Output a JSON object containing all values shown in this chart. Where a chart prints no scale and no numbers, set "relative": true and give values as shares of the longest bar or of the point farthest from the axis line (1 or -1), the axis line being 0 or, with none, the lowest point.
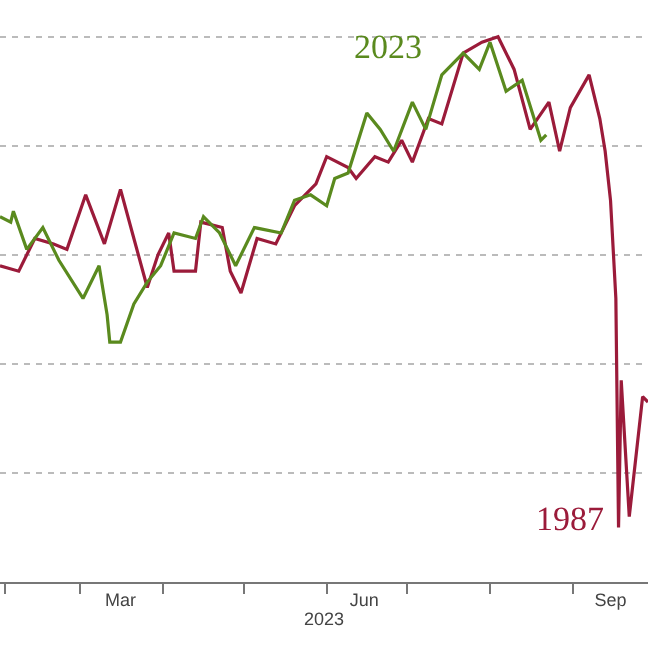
{
  "chart_data": {
    "type": "line",
    "relative": true,
    "xlabel": "2023",
    "legend": false,
    "grid": "y",
    "line_style": "solid",
    "marker": "none",
    "xlim": [
      "2023-01-30",
      "2023-09-29"
    ],
    "xticks": [
      {
        "value": "2023-02-01",
        "label": null
      },
      {
        "value": "2023-03-01",
        "label": null
      },
      {
        "value": "2023-03-16",
        "label": "Mar"
      },
      {
        "value": "2023-04-01",
        "label": null
      },
      {
        "value": "2023-05-01",
        "label": null
      },
      {
        "value": "2023-06-01",
        "label": null
      },
      {
        "value": "2023-06-15",
        "label": "Jun"
      },
      {
        "value": "2023-07-01",
        "label": null
      },
      {
        "value": "2023-08-01",
        "label": null
      },
      {
        "value": "2023-09-01",
        "label": null
      },
      {
        "value": "2023-09-15",
        "label": "Sep"
      }
    ],
    "series": [
      {
        "name": "1987",
        "color": "#9b1b3a",
        "x": [
          "2023-01-30",
          "2023-02-06",
          "2023-02-12",
          "2023-02-19",
          "2023-02-24",
          "2023-03-03",
          "2023-03-10",
          "2023-03-16",
          "2023-03-21",
          "2023-03-26",
          "2023-03-30",
          "2023-04-03",
          "2023-04-05",
          "2023-04-13",
          "2023-04-15",
          "2023-04-23",
          "2023-04-26",
          "2023-04-30",
          "2023-05-06",
          "2023-05-13",
          "2023-05-20",
          "2023-05-28",
          "2023-06-01",
          "2023-06-09",
          "2023-06-12",
          "2023-06-19",
          "2023-06-24",
          "2023-06-29",
          "2023-07-03",
          "2023-07-09",
          "2023-07-14",
          "2023-07-22",
          "2023-07-29",
          "2023-08-04",
          "2023-08-10",
          "2023-08-16",
          "2023-08-23",
          "2023-08-27",
          "2023-08-31",
          "2023-09-07",
          "2023-09-11",
          "2023-09-13",
          "2023-09-15",
          "2023-09-17",
          "2023-09-18",
          "2023-09-19",
          "2023-09-22",
          "2023-09-27",
          "2023-09-29"
        ],
        "values": [
          0.58,
          0.57,
          0.63,
          0.62,
          0.61,
          0.71,
          0.62,
          0.72,
          0.63,
          0.54,
          0.6,
          0.64,
          0.57,
          0.57,
          0.66,
          0.65,
          0.57,
          0.53,
          0.63,
          0.62,
          0.69,
          0.73,
          0.78,
          0.76,
          0.74,
          0.78,
          0.77,
          0.81,
          0.77,
          0.85,
          0.84,
          0.97,
          0.99,
          1,
          0.94,
          0.83,
          0.88,
          0.79,
          0.87,
          0.93,
          0.85,
          0.79,
          0.7,
          0.52,
          0.1,
          0.37,
          0.12,
          0.34,
          0.33
        ]
      },
      {
        "name": "2023",
        "color": "#5a8a1e",
        "x": [
          "2023-01-30",
          "2023-02-03",
          "2023-02-04",
          "2023-02-09",
          "2023-02-15",
          "2023-02-21",
          "2023-03-02",
          "2023-03-08",
          "2023-03-11",
          "2023-03-12",
          "2023-03-16",
          "2023-03-21",
          "2023-03-26",
          "2023-03-31",
          "2023-04-05",
          "2023-04-13",
          "2023-04-16",
          "2023-04-22",
          "2023-04-28",
          "2023-05-05",
          "2023-05-15",
          "2023-05-20",
          "2023-05-26",
          "2023-06-01",
          "2023-06-04",
          "2023-06-09",
          "2023-06-16",
          "2023-06-21",
          "2023-06-26",
          "2023-07-03",
          "2023-07-08",
          "2023-07-14",
          "2023-07-22",
          "2023-07-28",
          "2023-08-01",
          "2023-08-07",
          "2023-08-13",
          "2023-08-20",
          "2023-08-22"
        ],
        "values": [
          0.67,
          0.66,
          0.68,
          0.61,
          0.65,
          0.59,
          0.52,
          0.58,
          0.49,
          0.44,
          0.44,
          0.51,
          0.55,
          0.58,
          0.64,
          0.63,
          0.67,
          0.64,
          0.58,
          0.65,
          0.64,
          0.7,
          0.71,
          0.69,
          0.74,
          0.75,
          0.86,
          0.83,
          0.79,
          0.88,
          0.83,
          0.93,
          0.97,
          0.94,
          0.99,
          0.9,
          0.92,
          0.81,
          0.82
        ]
      }
    ]
  }
}
